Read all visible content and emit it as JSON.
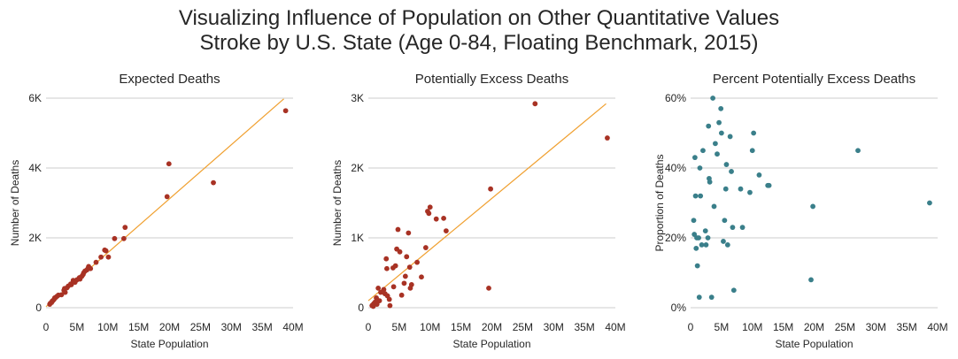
{
  "title_line1": "Visualizing Influence of Population on Other Quantitative Values",
  "title_line2": "Stroke by U.S. State (Age 0-84, Floating Benchmark, 2015)",
  "colors": {
    "expected": "#a83224",
    "excess": "#a83224",
    "percent": "#3a7f8a",
    "trend": "#f0a030",
    "grid": "#cccccc"
  },
  "chart_data": [
    {
      "type": "scatter",
      "title": "Expected Deaths",
      "xlabel": "State Population",
      "ylabel": "Number of Deaths",
      "xlim": [
        0,
        40
      ],
      "ylim": [
        0,
        6
      ],
      "xticks": [
        0,
        5,
        10,
        15,
        20,
        25,
        30,
        35,
        40
      ],
      "xtick_labels": [
        "0",
        "5M",
        "10M",
        "15M",
        "20M",
        "25M",
        "30M",
        "35M",
        "40M"
      ],
      "yticks": [
        0,
        2,
        4,
        6
      ],
      "ytick_labels": [
        "0",
        "2K",
        "4K",
        "6K"
      ],
      "grid": "horizontal",
      "trendline": [
        [
          0,
          0.03
        ],
        [
          38.5,
          5.98
        ]
      ],
      "x": [
        0.6,
        0.7,
        0.9,
        1.0,
        1.1,
        1.3,
        1.4,
        1.6,
        1.8,
        2.0,
        2.5,
        2.9,
        3.0,
        3.1,
        3.4,
        3.6,
        4.0,
        4.1,
        4.4,
        4.7,
        5.0,
        5.4,
        5.5,
        5.8,
        6.0,
        6.1,
        6.3,
        6.6,
        6.8,
        6.9,
        7.2,
        8.1,
        8.9,
        9.5,
        9.7,
        10.1,
        11.1,
        12.6,
        12.8,
        19.6,
        19.9,
        27.1,
        38.8
      ],
      "y": [
        0.1,
        0.13,
        0.15,
        0.19,
        0.2,
        0.24,
        0.28,
        0.3,
        0.33,
        0.36,
        0.37,
        0.5,
        0.55,
        0.44,
        0.57,
        0.62,
        0.68,
        0.66,
        0.78,
        0.73,
        0.8,
        0.86,
        0.82,
        0.9,
        0.95,
        1.0,
        1.05,
        1.08,
        1.13,
        1.18,
        1.12,
        1.3,
        1.45,
        1.65,
        1.63,
        1.45,
        1.98,
        1.98,
        2.3,
        3.18,
        4.12,
        3.58,
        5.64
      ]
    },
    {
      "type": "scatter",
      "title": "Potentially Excess Deaths",
      "xlabel": "State Population",
      "ylabel": "Number of Deaths",
      "xlim": [
        0,
        40
      ],
      "ylim": [
        0,
        3
      ],
      "xticks": [
        0,
        5,
        10,
        15,
        20,
        25,
        30,
        35,
        40
      ],
      "xtick_labels": [
        "0",
        "5M",
        "10M",
        "15M",
        "20M",
        "25M",
        "30M",
        "35M",
        "40M"
      ],
      "yticks": [
        0,
        1,
        2,
        3
      ],
      "ytick_labels": [
        "0",
        "1K",
        "2K",
        "3K"
      ],
      "grid": "horizontal",
      "trendline": [
        [
          0,
          0.1
        ],
        [
          38.5,
          2.92
        ]
      ],
      "x": [
        0.6,
        0.7,
        0.8,
        0.9,
        1.0,
        1.1,
        1.3,
        1.4,
        1.6,
        1.8,
        2.0,
        2.5,
        2.7,
        2.9,
        3.0,
        3.1,
        3.4,
        3.5,
        4.0,
        4.1,
        4.4,
        4.6,
        4.8,
        5.1,
        5.4,
        5.8,
        6.0,
        6.2,
        6.5,
        6.7,
        6.8,
        7.0,
        7.9,
        8.6,
        9.3,
        9.6,
        9.8,
        10.0,
        11.0,
        12.2,
        12.6,
        19.5,
        19.8,
        27.0,
        38.7
      ],
      "y": [
        0.03,
        0.04,
        0.02,
        0.06,
        0.05,
        0.08,
        0.14,
        0.05,
        0.28,
        0.1,
        0.22,
        0.26,
        0.2,
        0.7,
        0.56,
        0.17,
        0.12,
        0.03,
        0.57,
        0.3,
        0.6,
        0.84,
        1.12,
        0.8,
        0.18,
        0.35,
        0.45,
        0.73,
        1.07,
        0.58,
        0.28,
        0.33,
        0.65,
        0.44,
        0.86,
        1.38,
        1.35,
        1.44,
        1.27,
        1.28,
        1.1,
        0.28,
        1.7,
        2.92,
        2.43
      ]
    },
    {
      "type": "scatter",
      "title": "Percent Potentially Excess Deaths",
      "xlabel": "State Population",
      "ylabel": "Proportion of Deaths",
      "xlim": [
        0,
        40
      ],
      "ylim": [
        0,
        60
      ],
      "xticks": [
        0,
        5,
        10,
        15,
        20,
        25,
        30,
        35,
        40
      ],
      "xtick_labels": [
        "0",
        "5M",
        "10M",
        "15M",
        "20M",
        "25M",
        "30M",
        "35M",
        "40M"
      ],
      "yticks": [
        0,
        20,
        40,
        60
      ],
      "ytick_labels": [
        "0%",
        "20%",
        "40%",
        "60%"
      ],
      "grid": "horizontal",
      "x": [
        0.5,
        0.6,
        0.7,
        0.8,
        0.9,
        1.0,
        1.1,
        1.3,
        1.4,
        1.5,
        1.6,
        1.8,
        2.0,
        2.4,
        2.5,
        2.8,
        2.9,
        3.0,
        3.1,
        3.4,
        3.6,
        3.8,
        4.0,
        4.3,
        4.6,
        4.9,
        5.0,
        5.3,
        5.5,
        5.7,
        5.8,
        6.0,
        6.4,
        6.6,
        6.8,
        7.0,
        8.1,
        8.4,
        9.6,
        10.0,
        10.2,
        11.1,
        12.5,
        12.7,
        19.5,
        19.8,
        27.1,
        38.7
      ],
      "y": [
        25,
        21,
        43,
        32,
        17,
        20,
        12,
        20,
        3,
        40,
        32,
        18,
        45,
        22,
        18,
        20,
        52,
        37,
        36,
        3,
        60,
        29,
        47,
        44,
        53,
        57,
        50,
        19,
        25,
        34,
        41,
        18,
        49,
        39,
        23,
        5,
        34,
        23,
        33,
        45,
        50,
        38,
        35,
        35,
        8,
        29,
        45,
        30
      ]
    }
  ]
}
